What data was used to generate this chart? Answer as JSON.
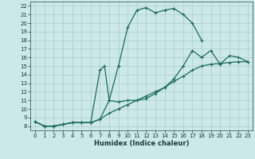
{
  "xlabel": "Humidex (Indice chaleur)",
  "bg_color": "#cce8e8",
  "grid_color": "#aacccc",
  "line_color": "#1a6b5a",
  "xlim": [
    -0.5,
    23.5
  ],
  "ylim": [
    7.5,
    22.5
  ],
  "xticks": [
    0,
    1,
    2,
    3,
    4,
    5,
    6,
    7,
    8,
    9,
    10,
    11,
    12,
    13,
    14,
    15,
    16,
    17,
    18,
    19,
    20,
    21,
    22,
    23
  ],
  "yticks": [
    8,
    9,
    10,
    11,
    12,
    13,
    14,
    15,
    16,
    17,
    18,
    19,
    20,
    21,
    22
  ],
  "curves": [
    {
      "x": [
        0,
        1,
        2,
        3,
        4,
        5,
        6,
        7,
        8,
        9,
        10,
        11,
        12,
        13,
        14,
        15,
        16,
        17,
        18
      ],
      "y": [
        8.5,
        8.0,
        8.0,
        8.2,
        8.4,
        8.4,
        8.4,
        8.8,
        11.0,
        15.0,
        19.5,
        21.5,
        21.8,
        21.2,
        21.5,
        21.7,
        21.0,
        20.0,
        18.0
      ]
    },
    {
      "x": [
        0,
        1,
        2,
        3,
        4,
        5,
        6,
        7,
        7.5,
        8,
        9,
        10,
        11,
        12,
        13,
        14,
        15,
        16,
        17,
        18,
        19,
        20,
        21,
        22,
        23
      ],
      "y": [
        8.5,
        8.0,
        8.0,
        8.2,
        8.4,
        8.4,
        8.4,
        14.5,
        15.0,
        11.0,
        10.8,
        11.0,
        11.0,
        11.2,
        11.8,
        12.5,
        13.5,
        15.0,
        16.8,
        16.0,
        16.8,
        15.2,
        16.2,
        16.0,
        15.5
      ]
    },
    {
      "x": [
        0,
        1,
        2,
        3,
        4,
        5,
        6,
        7,
        8,
        9,
        10,
        11,
        12,
        13,
        14,
        15,
        16,
        17,
        18,
        19,
        20,
        21,
        22,
        23
      ],
      "y": [
        8.5,
        8.0,
        8.0,
        8.2,
        8.4,
        8.4,
        8.4,
        8.8,
        9.5,
        10.0,
        10.5,
        11.0,
        11.5,
        12.0,
        12.5,
        13.2,
        13.8,
        14.5,
        15.0,
        15.2,
        15.3,
        15.4,
        15.5,
        15.5
      ]
    }
  ]
}
